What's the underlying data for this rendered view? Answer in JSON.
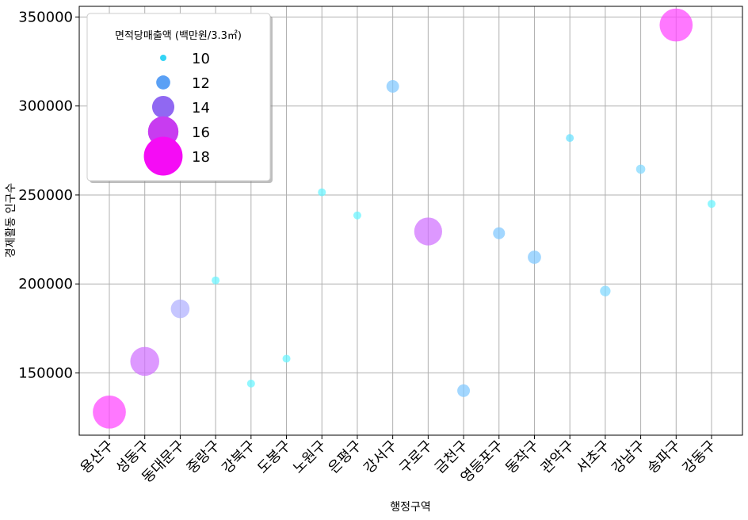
{
  "chart_data": {
    "type": "scatter",
    "xlabel": "행정구역",
    "ylabel": "경제활동 인구수",
    "ylim": [
      115000,
      356000
    ],
    "yticks": [
      150000,
      200000,
      250000,
      300000,
      350000
    ],
    "grid": true,
    "legend": {
      "title": "면적당매출액 (백만원/3.3㎡)",
      "placement": "top-left",
      "entries": [
        {
          "label": "10",
          "value": 10,
          "color": "#33d4f5"
        },
        {
          "label": "12",
          "value": 12,
          "color": "#5aa0f5"
        },
        {
          "label": "14",
          "value": 14,
          "color": "#9068f2"
        },
        {
          "label": "16",
          "value": 16,
          "color": "#c83cf0"
        },
        {
          "label": "18",
          "value": 18,
          "color": "#f50cf5"
        }
      ]
    },
    "categories": [
      "용산구",
      "성동구",
      "동대문구",
      "중랑구",
      "강북구",
      "도봉구",
      "노원구",
      "은평구",
      "강서구",
      "구로구",
      "금천구",
      "영등포구",
      "동작구",
      "관악구",
      "서초구",
      "강남구",
      "송파구",
      "강동구"
    ],
    "points": [
      {
        "x": "용산구",
        "y": 128000,
        "size_value": 18.0,
        "color": "#ff44ff"
      },
      {
        "x": "성동구",
        "y": 156500,
        "size_value": 16.8,
        "color": "#d070ff"
      },
      {
        "x": "동대문구",
        "y": 186000,
        "size_value": 13.8,
        "color": "#b0b0ff"
      },
      {
        "x": "중랑구",
        "y": 202000,
        "size_value": 9.6,
        "color": "#66f4ff"
      },
      {
        "x": "강북구",
        "y": 144000,
        "size_value": 9.2,
        "color": "#66f4ff"
      },
      {
        "x": "도봉구",
        "y": 158000,
        "size_value": 9.0,
        "color": "#66f4ff"
      },
      {
        "x": "노원구",
        "y": 251500,
        "size_value": 9.6,
        "color": "#66f4ff"
      },
      {
        "x": "은평구",
        "y": 238500,
        "size_value": 8.8,
        "color": "#66f4ff"
      },
      {
        "x": "강서구",
        "y": 311000,
        "size_value": 12.0,
        "color": "#80c8ff"
      },
      {
        "x": "구로구",
        "y": 229500,
        "size_value": 16.5,
        "color": "#d070ff"
      },
      {
        "x": "금천구",
        "y": 140000,
        "size_value": 12.0,
        "color": "#80c8ff"
      },
      {
        "x": "영등포구",
        "y": 228500,
        "size_value": 11.8,
        "color": "#80c8ff"
      },
      {
        "x": "동작구",
        "y": 215000,
        "size_value": 12.2,
        "color": "#80c8ff"
      },
      {
        "x": "관악구",
        "y": 282000,
        "size_value": 10.4,
        "color": "#66e0ff"
      },
      {
        "x": "서초구",
        "y": 196000,
        "size_value": 11.4,
        "color": "#80d8ff"
      },
      {
        "x": "강남구",
        "y": 264500,
        "size_value": 11.0,
        "color": "#80d8ff"
      },
      {
        "x": "송파구",
        "y": 345500,
        "size_value": 18.0,
        "color": "#ff44ff"
      },
      {
        "x": "강동구",
        "y": 245000,
        "size_value": 8.9,
        "color": "#66f4ff"
      }
    ]
  }
}
